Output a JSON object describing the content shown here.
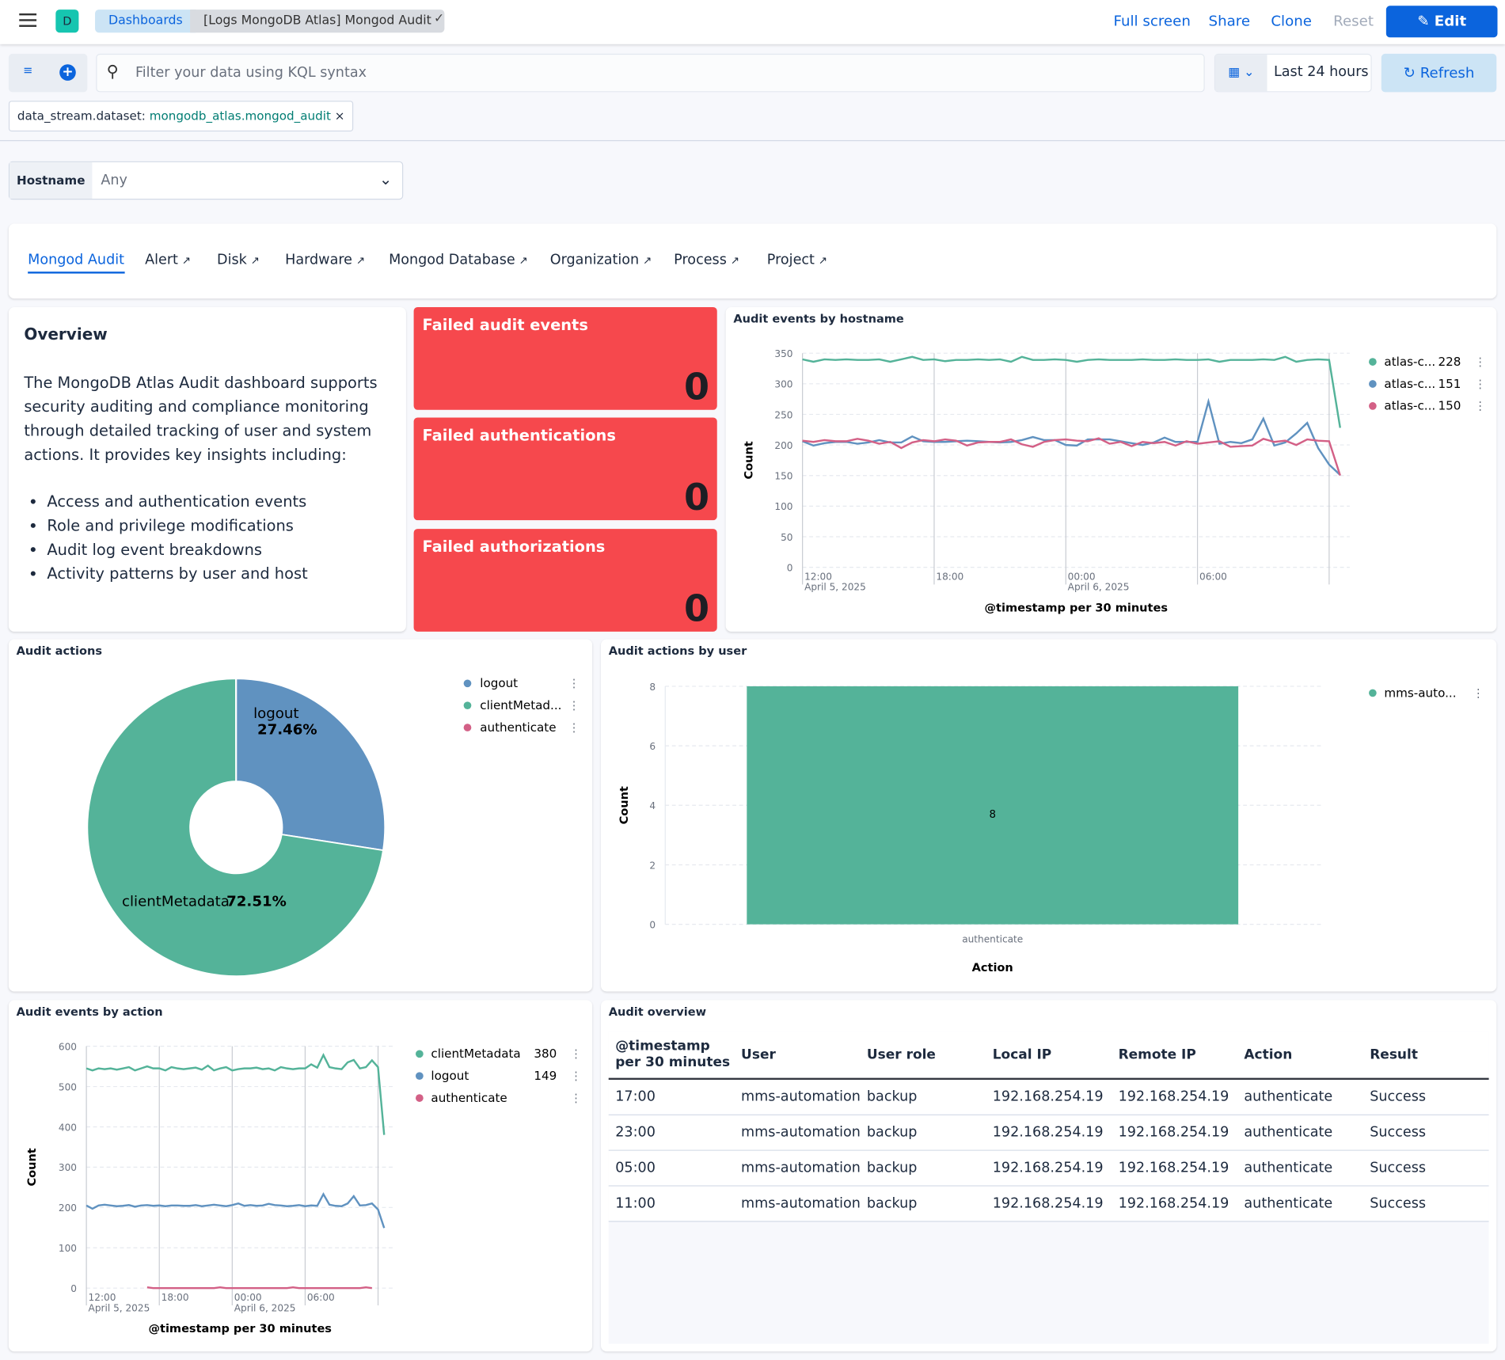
{
  "header": {
    "logo_letter": "D",
    "breadcrumbs": [
      "Dashboards",
      "[Logs MongoDB Atlas] Mongod Audit"
    ],
    "actions": [
      "Full screen",
      "Share",
      "Clone",
      "Reset"
    ],
    "edit_label": "Edit"
  },
  "query": {
    "placeholder": "Filter your data using KQL syntax",
    "time_range": "Last 24 hours",
    "refresh_label": "Refresh"
  },
  "filter_pill": {
    "field": "data_stream.dataset:",
    "value": "mongodb_atlas.mongod_audit"
  },
  "control": {
    "label": "Hostname",
    "value": "Any"
  },
  "tabs": [
    {
      "label": "Mongod Audit",
      "active": true
    },
    {
      "label": "Alert",
      "external": true
    },
    {
      "label": "Disk",
      "external": true
    },
    {
      "label": "Hardware",
      "external": true
    },
    {
      "label": "Mongod Database",
      "external": true
    },
    {
      "label": "Organization",
      "external": true
    },
    {
      "label": "Process",
      "external": true
    },
    {
      "label": "Project",
      "external": true
    }
  ],
  "overview": {
    "title": "Overview",
    "text": "The MongoDB Atlas Audit dashboard supports security auditing and compliance monitoring through detailed tracking of user and system actions. It provides key insights including:",
    "bullets": [
      "Access and authentication events",
      "Role and privilege modifications",
      "Audit log event breakdowns",
      "Activity patterns by user and host"
    ]
  },
  "metrics": [
    {
      "title": "Failed audit events",
      "value": "0"
    },
    {
      "title": "Failed authentications",
      "value": "0"
    },
    {
      "title": "Failed authorizations",
      "value": "0"
    }
  ],
  "colors": {
    "green": "#54b399",
    "blue": "#6092c0",
    "pink": "#d36086",
    "metric_bg": "#f6484d",
    "accent": "#0b64dd"
  },
  "chart_data": [
    {
      "type": "line",
      "title": "Audit events by hostname",
      "xlabel": "@timestamp per 30 minutes",
      "ylabel": "Count",
      "ylim": [
        0,
        350
      ],
      "yticks": [
        0,
        50,
        100,
        150,
        200,
        250,
        300,
        350
      ],
      "xticks": [
        {
          "label": "12:00",
          "sub": "April 5, 2025",
          "i": 0
        },
        {
          "label": "18:00",
          "i": 12
        },
        {
          "label": "00:00",
          "sub": "April 6, 2025",
          "i": 24
        },
        {
          "label": "06:00",
          "i": 36
        }
      ],
      "x_start": "2025-04-05 12:00",
      "x_interval": "30 minutes",
      "grid": true,
      "legend": "right",
      "series": [
        {
          "name": "atlas-c...",
          "legend_value": "228",
          "color": "#54b399",
          "values": [
            340,
            336,
            340,
            339,
            340,
            339,
            339,
            340,
            336,
            340,
            344,
            339,
            340,
            337,
            339,
            339,
            340,
            339,
            340,
            336,
            344,
            339,
            339,
            340,
            339,
            336,
            339,
            340,
            339,
            339,
            339,
            340,
            339,
            339,
            340,
            339,
            339,
            340,
            336,
            339,
            339,
            339,
            340,
            339,
            344,
            336,
            339,
            340,
            339,
            228
          ]
        },
        {
          "name": "atlas-c...",
          "legend_value": "151",
          "color": "#6092c0",
          "values": [
            206,
            199,
            203,
            205,
            205,
            202,
            204,
            208,
            204,
            204,
            214,
            206,
            205,
            205,
            206,
            207,
            206,
            205,
            204,
            205,
            208,
            213,
            208,
            208,
            200,
            199,
            209,
            209,
            209,
            206,
            203,
            200,
            204,
            212,
            205,
            205,
            205,
            271,
            202,
            205,
            203,
            209,
            243,
            199,
            204,
            219,
            236,
            195,
            168,
            151
          ]
        },
        {
          "name": "atlas-c...",
          "legend_value": "150",
          "color": "#d36086",
          "values": [
            207,
            205,
            208,
            206,
            206,
            210,
            207,
            202,
            205,
            195,
            204,
            208,
            206,
            209,
            207,
            199,
            204,
            205,
            205,
            209,
            201,
            197,
            205,
            208,
            209,
            207,
            206,
            211,
            202,
            205,
            198,
            205,
            203,
            205,
            199,
            206,
            202,
            204,
            206,
            197,
            198,
            199,
            210,
            205,
            207,
            200,
            209,
            207,
            206,
            150
          ]
        }
      ]
    },
    {
      "type": "pie",
      "title": "Audit actions",
      "donut": true,
      "legend": "right",
      "slices": [
        {
          "name": "logout",
          "label": "logout",
          "value": 27.46,
          "pct_label": "27.46%",
          "color": "#6092c0"
        },
        {
          "name": "clientMetadata",
          "legend": "clientMetad...",
          "label": "clientMetadata",
          "value": 72.51,
          "pct_label": "72.51%",
          "color": "#54b399"
        },
        {
          "name": "authenticate",
          "value": 0.03,
          "color": "#d36086"
        }
      ]
    },
    {
      "type": "bar",
      "title": "Audit actions by user",
      "xlabel": "Action",
      "ylabel": "Count",
      "ylim": [
        0,
        8
      ],
      "yticks": [
        0,
        2,
        4,
        6,
        8
      ],
      "categories": [
        "authenticate"
      ],
      "series": [
        {
          "name": "mms-auto...",
          "color": "#54b399",
          "values": [
            8
          ]
        }
      ],
      "data_label": "8",
      "legend": "right"
    },
    {
      "type": "line",
      "title": "Audit events by action",
      "xlabel": "@timestamp per 30 minutes",
      "ylabel": "Count",
      "ylim": [
        0,
        600
      ],
      "yticks": [
        0,
        100,
        200,
        300,
        400,
        500,
        600
      ],
      "xticks": [
        {
          "label": "12:00",
          "sub": "April 5, 2025",
          "i": 0
        },
        {
          "label": "18:00",
          "i": 12
        },
        {
          "label": "00:00",
          "sub": "April 6, 2025",
          "i": 24
        },
        {
          "label": "06:00",
          "i": 36
        }
      ],
      "x_start": "2025-04-05 12:00",
      "x_interval": "30 minutes",
      "grid": true,
      "legend": "right",
      "series": [
        {
          "name": "clientMetadata",
          "legend_value": "380",
          "color": "#54b399",
          "values": [
            545,
            540,
            545,
            543,
            545,
            542,
            545,
            548,
            540,
            545,
            550,
            545,
            545,
            540,
            548,
            545,
            543,
            545,
            547,
            542,
            552,
            540,
            545,
            548,
            540,
            543,
            545,
            545,
            547,
            543,
            545,
            540,
            548,
            545,
            543,
            545,
            545,
            555,
            547,
            578,
            548,
            545,
            543,
            560,
            566,
            545,
            548,
            565,
            548,
            380
          ]
        },
        {
          "name": "logout",
          "legend_value": "149",
          "color": "#6092c0",
          "values": [
            205,
            197,
            205,
            207,
            205,
            203,
            204,
            206,
            202,
            205,
            206,
            204,
            205,
            203,
            205,
            205,
            204,
            204,
            206,
            203,
            205,
            207,
            205,
            203,
            206,
            210,
            204,
            206,
            204,
            205,
            209,
            206,
            205,
            203,
            204,
            206,
            203,
            205,
            204,
            233,
            207,
            204,
            203,
            210,
            228,
            205,
            206,
            210,
            195,
            149
          ]
        },
        {
          "name": "authenticate",
          "legend_value": "",
          "color": "#d36086",
          "values": [
            null,
            null,
            null,
            null,
            null,
            null,
            null,
            null,
            null,
            null,
            2,
            0,
            0,
            0,
            0,
            0,
            0,
            0,
            0,
            0,
            0,
            0,
            2,
            0,
            0,
            0,
            0,
            0,
            0,
            0,
            0,
            0,
            0,
            0,
            2,
            0,
            0,
            0,
            0,
            0,
            0,
            0,
            0,
            0,
            0,
            0,
            2,
            0,
            null,
            null
          ]
        }
      ]
    }
  ],
  "table": {
    "title": "Audit overview",
    "columns": [
      "@timestamp per 30 minutes",
      "User",
      "User role",
      "Local IP",
      "Remote IP",
      "Action",
      "Result"
    ],
    "rows": [
      [
        "17:00",
        "mms-automation",
        "backup",
        "192.168.254.19",
        "192.168.254.19",
        "authenticate",
        "Success"
      ],
      [
        "23:00",
        "mms-automation",
        "backup",
        "192.168.254.19",
        "192.168.254.19",
        "authenticate",
        "Success"
      ],
      [
        "05:00",
        "mms-automation",
        "backup",
        "192.168.254.19",
        "192.168.254.19",
        "authenticate",
        "Success"
      ],
      [
        "11:00",
        "mms-automation",
        "backup",
        "192.168.254.19",
        "192.168.254.19",
        "authenticate",
        "Success"
      ]
    ]
  }
}
